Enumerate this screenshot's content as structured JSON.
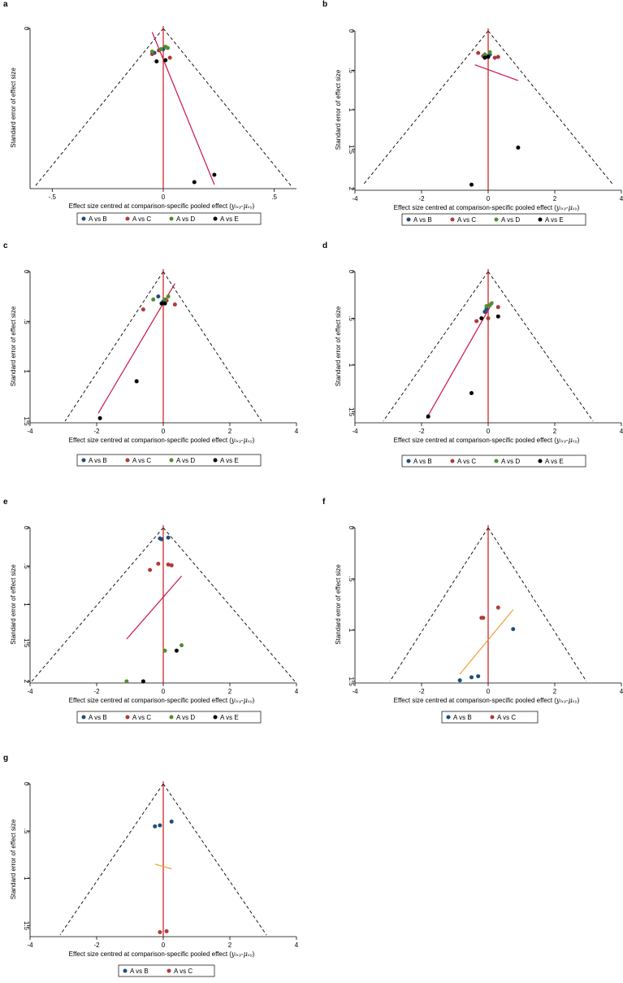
{
  "figure": {
    "xlabel_prefix": "Effect size centred at comparison-specific pooled effect (",
    "xlabel_math": "yᵢₓᵧ-μₓᵧ",
    "xlabel_suffix": ")",
    "ylabel": "Standard error of effect size",
    "colors": {
      "A vs B": "#1f4e79",
      "A vs C": "#b03a3a",
      "A vs D": "#4e8f2f",
      "A vs E": "#000000",
      "funnel": "#000000",
      "null_line": "#cc0000",
      "fit_red": "#cc1144",
      "fit_orange": "#f0a030"
    }
  },
  "chart_data": [
    {
      "panel": "a",
      "type": "scatter",
      "subtype": "comparison-adjusted funnel plot",
      "xlim": [
        -0.6,
        0.6
      ],
      "ylim": [
        0,
        1.3
      ],
      "xticks": [
        -0.5,
        0,
        0.5
      ],
      "xtick_labels": [
        "-.5",
        "0",
        ".5"
      ],
      "yticks": [
        0
      ],
      "ytick_labels": [
        "0"
      ],
      "funnel_apex": [
        0,
        0
      ],
      "funnel_base_y": 1.3,
      "funnel_base_x": [
        -0.58,
        0.58
      ],
      "fit_line": {
        "color": "red",
        "x": [
          -0.05,
          0.23
        ],
        "y": [
          0.03,
          1.28
        ]
      },
      "legend": [
        "A vs B",
        "A vs C",
        "A vs D",
        "A vs E"
      ],
      "series": [
        {
          "name": "A vs B",
          "points": [
            [
              -0.04,
              0.2
            ],
            [
              0.0,
              0.17
            ]
          ]
        },
        {
          "name": "A vs C",
          "points": [
            [
              -0.02,
              0.18
            ],
            [
              0.03,
              0.24
            ],
            [
              -0.05,
              0.21
            ]
          ]
        },
        {
          "name": "A vs D",
          "points": [
            [
              -0.05,
              0.19
            ],
            [
              0.01,
              0.15
            ],
            [
              -0.01,
              0.17
            ],
            [
              0.02,
              0.16
            ]
          ]
        },
        {
          "name": "A vs E",
          "points": [
            [
              -0.03,
              0.27
            ],
            [
              0.01,
              0.26
            ],
            [
              0.14,
              1.26
            ],
            [
              0.23,
              1.2
            ]
          ]
        }
      ]
    },
    {
      "panel": "b",
      "type": "scatter",
      "subtype": "comparison-adjusted funnel plot",
      "xlim": [
        -4,
        4
      ],
      "ylim": [
        0,
        2
      ],
      "xticks": [
        -4,
        -2,
        0,
        2,
        4
      ],
      "xtick_labels": [
        "-4",
        "-2",
        "0",
        "2",
        "4"
      ],
      "yticks": [
        0,
        0.5,
        1,
        1.5,
        2
      ],
      "ytick_labels": [
        "0",
        ".5",
        "1",
        "1.5",
        "2"
      ],
      "funnel_apex": [
        0,
        0
      ],
      "funnel_base_y": 1.95,
      "funnel_base_x": [
        -3.75,
        3.75
      ],
      "fit_line": {
        "color": "red",
        "x": [
          -0.4,
          0.9
        ],
        "y": [
          0.43,
          0.63
        ]
      },
      "legend": [
        "A vs B",
        "A vs C",
        "A vs D",
        "A vs E"
      ],
      "series": [
        {
          "name": "A vs B",
          "points": [
            [
              -0.1,
              0.3
            ],
            [
              0.05,
              0.3
            ]
          ]
        },
        {
          "name": "A vs C",
          "points": [
            [
              -0.3,
              0.28
            ],
            [
              0.2,
              0.34
            ],
            [
              0.3,
              0.33
            ],
            [
              -0.15,
              0.32
            ]
          ]
        },
        {
          "name": "A vs D",
          "points": [
            [
              -0.1,
              0.3
            ],
            [
              0.05,
              0.27
            ],
            [
              -0.05,
              0.32
            ]
          ]
        },
        {
          "name": "A vs E",
          "points": [
            [
              -0.1,
              0.34
            ],
            [
              0.0,
              0.33
            ],
            [
              0.9,
              1.48
            ],
            [
              -0.5,
              1.95
            ]
          ]
        }
      ]
    },
    {
      "panel": "c",
      "type": "scatter",
      "subtype": "comparison-adjusted funnel plot",
      "xlim": [
        -4,
        4
      ],
      "ylim": [
        0,
        1.5
      ],
      "xticks": [
        -4,
        -2,
        0,
        2,
        4
      ],
      "xtick_labels": [
        "-4",
        "-2",
        "0",
        "2",
        "4"
      ],
      "yticks": [
        0,
        0.5,
        1,
        1.5
      ],
      "ytick_labels": [
        "0",
        ".5",
        "1",
        "1.5"
      ],
      "funnel_apex": [
        0,
        0
      ],
      "funnel_base_y": 1.5,
      "funnel_base_x": [
        -2.95,
        2.95
      ],
      "fit_line": {
        "color": "red",
        "x": [
          -1.95,
          0.35
        ],
        "y": [
          1.42,
          0.12
        ]
      },
      "legend": [
        "A vs B",
        "A vs C",
        "A vs D",
        "A vs E"
      ],
      "series": [
        {
          "name": "A vs B",
          "points": [
            [
              -0.15,
              0.25
            ],
            [
              0.0,
              0.3
            ]
          ]
        },
        {
          "name": "A vs C",
          "points": [
            [
              -0.6,
              0.38
            ],
            [
              0.35,
              0.33
            ],
            [
              0.1,
              0.29
            ]
          ]
        },
        {
          "name": "A vs D",
          "points": [
            [
              -0.3,
              0.28
            ],
            [
              0.15,
              0.25
            ],
            [
              0.05,
              0.28
            ]
          ]
        },
        {
          "name": "A vs E",
          "points": [
            [
              -0.05,
              0.32
            ],
            [
              0.05,
              0.32
            ],
            [
              -0.8,
              1.1
            ],
            [
              -1.9,
              1.47
            ]
          ]
        }
      ]
    },
    {
      "panel": "d",
      "type": "scatter",
      "subtype": "comparison-adjusted funnel plot",
      "xlim": [
        -4,
        4
      ],
      "ylim": [
        0,
        1.6
      ],
      "xticks": [
        -4,
        -2,
        0,
        2,
        4
      ],
      "xtick_labels": [
        "-4",
        "-2",
        "0",
        "2",
        "4"
      ],
      "yticks": [
        0,
        0.5,
        1,
        1.5
      ],
      "ytick_labels": [
        "0",
        ".5",
        "1",
        "1.5"
      ],
      "funnel_apex": [
        0,
        0
      ],
      "funnel_base_y": 1.6,
      "funnel_base_x": [
        -3.15,
        3.15
      ],
      "fit_line": {
        "color": "red",
        "x": [
          -1.85,
          0.15
        ],
        "y": [
          1.57,
          0.32
        ]
      },
      "legend": [
        "A vs B",
        "A vs C",
        "A vs D",
        "A vs E"
      ],
      "series": [
        {
          "name": "A vs B",
          "points": [
            [
              -0.1,
              0.43
            ],
            [
              -0.05,
              0.4
            ]
          ]
        },
        {
          "name": "A vs C",
          "points": [
            [
              -0.35,
              0.53
            ],
            [
              0.3,
              0.38
            ],
            [
              0.0,
              0.5
            ]
          ]
        },
        {
          "name": "A vs D",
          "points": [
            [
              -0.05,
              0.37
            ],
            [
              0.05,
              0.36
            ],
            [
              0.1,
              0.34
            ]
          ]
        },
        {
          "name": "A vs E",
          "points": [
            [
              -0.2,
              0.5
            ],
            [
              0.3,
              0.48
            ],
            [
              -0.5,
              1.3
            ],
            [
              -1.8,
              1.55
            ]
          ]
        }
      ]
    },
    {
      "panel": "e",
      "type": "scatter",
      "subtype": "comparison-adjusted funnel plot",
      "xlim": [
        -4,
        4
      ],
      "ylim": [
        0,
        2
      ],
      "xticks": [
        -4,
        -2,
        0,
        2,
        4
      ],
      "xtick_labels": [
        "-4",
        "-2",
        "0",
        "2",
        "4"
      ],
      "yticks": [
        0,
        0.5,
        1,
        1.5,
        2
      ],
      "ytick_labels": [
        "0",
        ".5",
        "1",
        "1.5",
        "2"
      ],
      "funnel_apex": [
        0,
        0
      ],
      "funnel_base_y": 2.0,
      "funnel_base_x": [
        -3.95,
        3.95
      ],
      "fit_line": {
        "color": "red",
        "x": [
          -1.1,
          0.55
        ],
        "y": [
          1.45,
          0.63
        ]
      },
      "legend": [
        "A vs B",
        "A vs C",
        "A vs D",
        "A vs E"
      ],
      "series": [
        {
          "name": "A vs B",
          "points": [
            [
              -0.1,
              0.14
            ],
            [
              -0.05,
              0.15
            ],
            [
              0.15,
              0.13
            ]
          ]
        },
        {
          "name": "A vs C",
          "points": [
            [
              -0.4,
              0.55
            ],
            [
              -0.15,
              0.47
            ],
            [
              0.15,
              0.48
            ],
            [
              0.25,
              0.49
            ]
          ]
        },
        {
          "name": "A vs D",
          "points": [
            [
              0.55,
              1.53
            ],
            [
              0.05,
              1.6
            ],
            [
              -1.1,
              2.0
            ]
          ]
        },
        {
          "name": "A vs E",
          "points": [
            [
              0.4,
              1.6
            ],
            [
              -0.6,
              2.0
            ]
          ]
        }
      ]
    },
    {
      "panel": "f",
      "type": "scatter",
      "subtype": "comparison-adjusted funnel plot",
      "xlim": [
        -4,
        4
      ],
      "ylim": [
        0,
        1.5
      ],
      "xticks": [
        -4,
        -2,
        0,
        2,
        4
      ],
      "xtick_labels": [
        "-4",
        "-2",
        "0",
        "2",
        "4"
      ],
      "yticks": [
        0,
        0.5,
        1,
        1.5
      ],
      "ytick_labels": [
        "0",
        ".5",
        "1",
        "1.5"
      ],
      "funnel_apex": [
        0,
        0
      ],
      "funnel_base_y": 1.5,
      "funnel_base_x": [
        -2.95,
        2.95
      ],
      "fit_line": {
        "color": "orange",
        "x": [
          -0.85,
          0.75
        ],
        "y": [
          1.43,
          0.8
        ]
      },
      "legend": [
        "A vs B",
        "A vs C"
      ],
      "series": [
        {
          "name": "A vs B",
          "points": [
            [
              0.75,
              0.99
            ],
            [
              -0.5,
              1.46
            ],
            [
              -0.3,
              1.45
            ],
            [
              -0.85,
              1.49
            ]
          ]
        },
        {
          "name": "A vs C",
          "points": [
            [
              0.3,
              0.78
            ],
            [
              -0.2,
              0.88
            ],
            [
              -0.15,
              0.88
            ]
          ]
        }
      ]
    },
    {
      "panel": "g",
      "type": "scatter",
      "subtype": "comparison-adjusted funnel plot",
      "xlim": [
        -4,
        4
      ],
      "ylim": [
        0,
        1.6
      ],
      "xticks": [
        -4,
        -2,
        0,
        2,
        4
      ],
      "xtick_labels": [
        "-4",
        "-2",
        "0",
        "2",
        "4"
      ],
      "yticks": [
        0,
        0.5,
        1,
        1.5
      ],
      "ytick_labels": [
        "0",
        ".5",
        "1",
        "1.5"
      ],
      "funnel_apex": [
        0,
        0
      ],
      "funnel_base_y": 1.6,
      "funnel_base_x": [
        -3.1,
        3.1
      ],
      "fit_line": {
        "color": "orange",
        "x": [
          -0.25,
          0.25
        ],
        "y": [
          0.85,
          0.9
        ]
      },
      "legend": [
        "A vs B",
        "A vs C"
      ],
      "series": [
        {
          "name": "A vs B",
          "points": [
            [
              -0.25,
              0.45
            ],
            [
              -0.1,
              0.44
            ],
            [
              0.25,
              0.4
            ]
          ]
        },
        {
          "name": "A vs C",
          "points": [
            [
              -0.1,
              1.57
            ],
            [
              0.1,
              1.56
            ]
          ]
        }
      ]
    }
  ]
}
